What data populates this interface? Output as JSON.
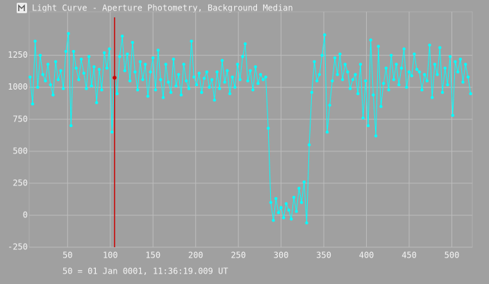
{
  "chart_data": {
    "type": "line",
    "title": "Light Curve - Aperture Photometry, Background Median",
    "footer": "50 = 01 Jan 0001, 11:36:19.009 UT",
    "x": [
      6,
      9,
      12,
      15,
      18,
      21,
      24,
      27,
      30,
      33,
      36,
      39,
      42,
      45,
      48,
      51,
      54,
      57,
      60,
      63,
      66,
      69,
      72,
      75,
      78,
      81,
      84,
      87,
      90,
      93,
      96,
      99,
      102,
      105,
      108,
      111,
      114,
      117,
      120,
      123,
      126,
      129,
      132,
      135,
      138,
      141,
      144,
      147,
      150,
      153,
      156,
      159,
      162,
      165,
      168,
      171,
      174,
      177,
      180,
      183,
      186,
      189,
      192,
      195,
      198,
      201,
      204,
      207,
      210,
      213,
      216,
      219,
      222,
      225,
      228,
      231,
      234,
      237,
      240,
      243,
      246,
      249,
      252,
      255,
      258,
      261,
      264,
      267,
      270,
      273,
      276,
      279,
      282,
      285,
      288,
      291,
      294,
      297,
      300,
      303,
      306,
      309,
      312,
      315,
      318,
      321,
      324,
      327,
      330,
      333,
      336,
      339,
      342,
      345,
      348,
      351,
      354,
      357,
      360,
      363,
      366,
      369,
      372,
      375,
      378,
      381,
      384,
      387,
      390,
      393,
      396,
      399,
      402,
      405,
      408,
      411,
      414,
      417,
      420,
      423,
      426,
      429,
      432,
      435,
      438,
      441,
      444,
      447,
      450,
      453,
      456,
      459,
      462,
      465,
      468,
      471,
      474,
      477,
      480,
      483,
      486,
      489,
      492,
      495,
      498,
      501,
      504,
      507,
      510,
      513,
      516,
      519,
      522
    ],
    "series": [
      {
        "color": "#00ffff",
        "values": [
          1080,
          870,
          1360,
          1000,
          1250,
          1100,
          1050,
          1180,
          1020,
          940,
          1200,
          1060,
          1130,
          990,
          1280,
          1420,
          700,
          1280,
          1150,
          1060,
          1220,
          1110,
          990,
          1240,
          1010,
          1160,
          880,
          1140,
          980,
          1270,
          1150,
          1300,
          650,
          1080,
          950,
          1240,
          1400,
          1130,
          1260,
          1050,
          1350,
          1120,
          980,
          1200,
          1060,
          1180,
          930,
          1120,
          1230,
          980,
          1290,
          1060,
          920,
          1180,
          1040,
          960,
          1220,
          1010,
          1100,
          940,
          1180,
          1050,
          990,
          1360,
          1080,
          1020,
          1110,
          960,
          1070,
          1120,
          1000,
          1060,
          900,
          1120,
          990,
          1210,
          1040,
          1130,
          950,
          1080,
          1000,
          1180,
          1060,
          1240,
          1340,
          1050,
          1130,
          980,
          1160,
          1030,
          1100,
          1060,
          1080,
          680,
          100,
          -40,
          130,
          20,
          60,
          -20,
          90,
          40,
          -30,
          140,
          30,
          210,
          100,
          260,
          -60,
          550,
          960,
          1200,
          1050,
          1100,
          1250,
          1410,
          650,
          860,
          1050,
          1230,
          1100,
          1260,
          1060,
          1180,
          1120,
          990,
          1060,
          1100,
          950,
          1180,
          760,
          1050,
          700,
          1370,
          940,
          620,
          1320,
          850,
          1030,
          1150,
          980,
          1250,
          1060,
          1180,
          1020,
          1150,
          1300,
          1000,
          1120,
          1090,
          1260,
          1140,
          1120,
          980,
          1100,
          1050,
          1330,
          920,
          1180,
          1100,
          1310,
          960,
          1150,
          1020,
          1240,
          780,
          1200,
          1120,
          1220,
          1040,
          1180,
          1080,
          950
        ]
      }
    ],
    "cursor": {
      "x": 105,
      "y": 1075,
      "color": "#cc0000"
    },
    "xlim": [
      5,
      524
    ],
    "ylim": [
      -250,
      1590
    ],
    "xticks": [
      50,
      100,
      150,
      200,
      250,
      300,
      350,
      400,
      450,
      500
    ],
    "yticks": [
      -250,
      0,
      250,
      500,
      750,
      1000,
      1250
    ],
    "grid": true
  }
}
